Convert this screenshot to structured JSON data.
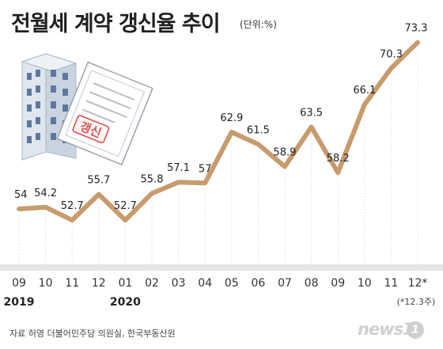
{
  "title": "전월세 계약 갱신율 추이",
  "unit": "(단위:%)",
  "source": "자료 허영 더불어민주당 의원실, 한국부동산원",
  "logo": {
    "text": "news1",
    "mark": "1"
  },
  "illustration": {
    "stamp_text": "갱신"
  },
  "chart_data": {
    "type": "line",
    "categories": [
      "09",
      "10",
      "11",
      "12",
      "01",
      "02",
      "03",
      "04",
      "05",
      "06",
      "07",
      "08",
      "09",
      "10",
      "11",
      "12*"
    ],
    "values": [
      54,
      54.2,
      52.7,
      55.7,
      52.7,
      55.8,
      57.1,
      57,
      62.9,
      61.5,
      58.9,
      63.5,
      58.2,
      66.1,
      70.3,
      73.3
    ],
    "labels": [
      "54",
      "54.2",
      "52.7",
      "55.7",
      "52.7",
      "55.8",
      "57.1",
      "57",
      "62.9",
      "61.5",
      "58.9",
      "63.5",
      "58.2",
      "66.1",
      "70.3",
      "73.3"
    ],
    "year_labels": [
      {
        "text": "2019",
        "index": 0
      },
      {
        "text": "2020",
        "index": 4
      }
    ],
    "note": "(*12.3주)",
    "line_color": "#c89b6d",
    "grid": "vertical-dotted"
  }
}
